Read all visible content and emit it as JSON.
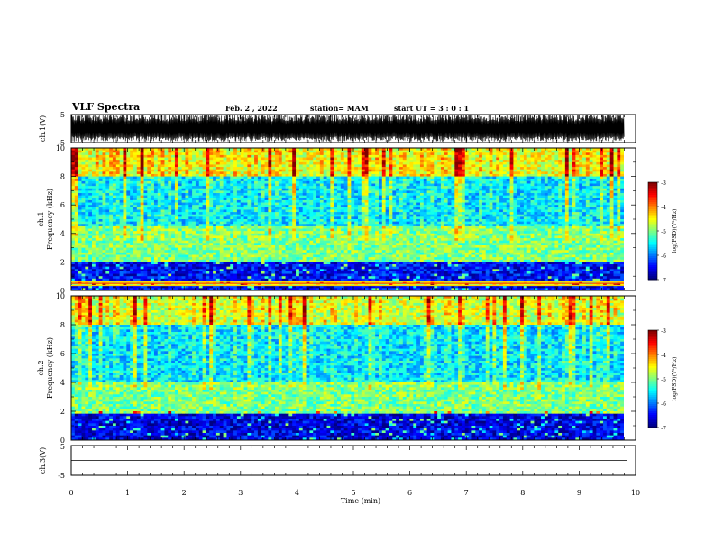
{
  "header": {
    "title": "VLF Spectra",
    "date": "Feb. 2 , 2022",
    "station": "station= MAM",
    "start": "start  UT =   3 : 0  : 1"
  },
  "chart_data": [
    {
      "type": "line",
      "ylabel": "ch.1(V)",
      "ylim": [
        -5,
        5
      ],
      "y_ticks": [
        "5",
        "-5"
      ],
      "description_values": "dense oscillating waveform spanning about -5 to 5 V",
      "xlim": [
        0,
        9.85
      ],
      "line_color": "#000000"
    },
    {
      "type": "heatmap",
      "ylabel_line1": "ch.1",
      "ylabel_line2": "Frequency (kHz)",
      "ylim": [
        0,
        10
      ],
      "y_ticks": [
        "0",
        "2",
        "4",
        "6",
        "8",
        "10"
      ],
      "xlim": [
        0,
        9.85
      ],
      "colorbar": {
        "label": "log(PSD)(V²/Hz)",
        "range": [
          -7,
          -3
        ],
        "ticks": [
          "-3",
          "-4",
          "-5",
          "-6",
          "-7"
        ]
      },
      "bands_log_psd": [
        {
          "f_kHz": [
            0,
            0.3
          ],
          "log_psd": -6.6
        },
        {
          "f_kHz": [
            0.3,
            0.6
          ],
          "log_psd": -4.6
        },
        {
          "f_kHz": [
            0.6,
            2.0
          ],
          "log_psd": -6.5
        },
        {
          "f_kHz": [
            2.0,
            4.5
          ],
          "log_psd": -5.0
        },
        {
          "f_kHz": [
            4.5,
            8.0
          ],
          "log_psd": -5.6
        },
        {
          "f_kHz": [
            8.0,
            10.0
          ],
          "log_psd": -4.6
        }
      ]
    },
    {
      "type": "heatmap",
      "ylabel_line1": "ch.2",
      "ylabel_line2": "Frequency (kHz)",
      "ylim": [
        0,
        10
      ],
      "y_ticks": [
        "0",
        "2",
        "4",
        "6",
        "8",
        "10"
      ],
      "xlim": [
        0,
        9.85
      ],
      "colorbar": {
        "label": "log(PSD)(V²/Hz)",
        "range": [
          -7,
          -3
        ],
        "ticks": [
          "-3",
          "-4",
          "-5",
          "-6",
          "-7"
        ]
      },
      "bands_log_psd": [
        {
          "f_kHz": [
            0,
            1.9
          ],
          "log_psd": -6.6
        },
        {
          "f_kHz": [
            1.9,
            4.0
          ],
          "log_psd": -5.0
        },
        {
          "f_kHz": [
            4.0,
            8.0
          ],
          "log_psd": -5.6
        },
        {
          "f_kHz": [
            8.0,
            10.0
          ],
          "log_psd": -4.7
        }
      ]
    },
    {
      "type": "line",
      "ylabel": "ch.3(V)",
      "ylim": [
        -5,
        5
      ],
      "y_ticks": [
        "5",
        "-5"
      ],
      "values": [
        0,
        0
      ],
      "x": [
        0,
        9.85
      ],
      "xlabel": "Time (min)",
      "xlim_axis": [
        0,
        10
      ],
      "x_ticks": [
        "0",
        "1",
        "2",
        "3",
        "4",
        "5",
        "6",
        "7",
        "8",
        "9",
        "10"
      ]
    }
  ]
}
